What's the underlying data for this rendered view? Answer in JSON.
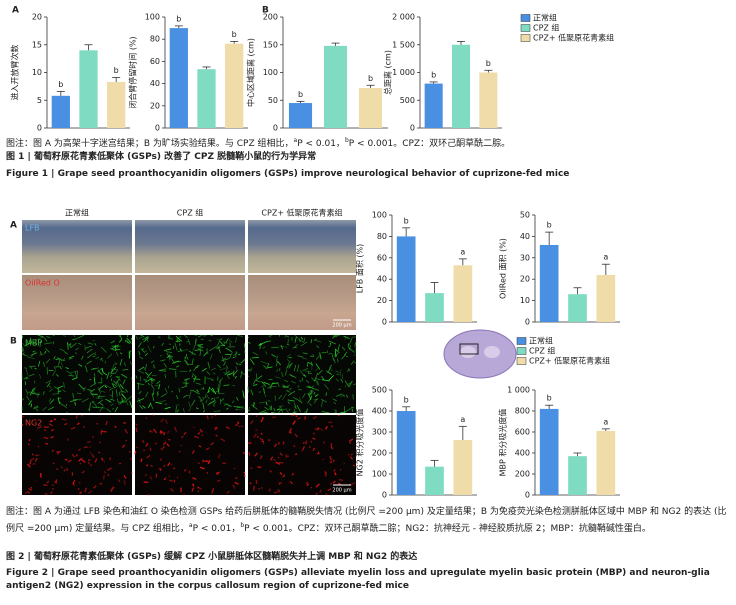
{
  "figure1": {
    "panels": [
      "A",
      "B"
    ],
    "legend": [
      {
        "name": "正常组",
        "color": "#4a90e2"
      },
      {
        "name": "CPZ 组",
        "color": "#7fdcc3"
      },
      {
        "name": "CPZ+ 低聚原花青素组",
        "color": "#f0dca8"
      }
    ],
    "note": [
      "图注：图 A 为高架十字迷宫结果；B 为旷场实验结果。与 CPZ 组相比，",
      {
        "sup": "a"
      },
      "P < 0.01，",
      {
        "sup": "b"
      },
      "P < 0.001。CPZ：双环己酮草酰二腙。"
    ],
    "title_cn": "图 1 | 葡萄籽原花青素低聚体 (GSPs) 改善了 CPZ 脱髓鞘小鼠的行为学异常",
    "title_en": "Figure 1 | Grape seed proanthocyanidin oligomers (GSPs) improve neurological behavior of cuprizone-fed mice"
  },
  "figure2": {
    "panels": [
      "A",
      "B"
    ],
    "columns": [
      "正常组",
      "CPZ 组",
      "CPZ+ 低聚原花青素组"
    ],
    "rows": [
      "LFB",
      "OilRed O",
      "MBP",
      "NG2"
    ],
    "scale_bar": "200 μm",
    "legend": [
      {
        "name": "正常组",
        "color": "#4a90e2"
      },
      {
        "name": "CPZ 组",
        "color": "#7fdcc3"
      },
      {
        "name": "CPZ+ 低聚原花青素组",
        "color": "#f0dca8"
      }
    ],
    "note": [
      "图注：图 A 为通过 LFB 染色和油红 O 染色检测 GSPs 给药后胼胝体的髓鞘脱失情况 (比例尺 =200 μm) 及定量结果；B 为免疫荧光染色检测胼胝体区域中 MBP 和 NG2 的表达 (比例尺 =200 μm) 定量结果。与 CPZ 组相比，",
      {
        "sup": "a"
      },
      "P < 0.01，",
      {
        "sup": "b"
      },
      "P < 0.001。CPZ：双环己酮草酰二腙；NG2：抗神经元 - 神经胶质抗原 2；MBP：抗髓鞘碱性蛋白。"
    ],
    "title_cn": "图 2 | 葡萄籽原花青素低聚体 (GSPs) 缓解 CPZ 小鼠胼胝体区髓鞘脱失并上调 MBP 和 NG2 的表达",
    "title_en": "Figure 2 | Grape seed proanthocyanidin oligomers (GSPs) alleviate myelin loss and upregulate myelin basic protein (MBP) and neuron-glia antigen2 (NG2) expression in the corpus callosum region of cuprizone-fed mice"
  },
  "chart_data": [
    {
      "type": "bar",
      "ylabel": "进入开放臂次数",
      "values": [
        5.8,
        14,
        8.3
      ],
      "errors": [
        0.8,
        1,
        0.8
      ],
      "letters": [
        "b",
        null,
        "b"
      ],
      "ylim": [
        0,
        20
      ],
      "yticks": [
        0,
        5,
        10,
        15,
        20
      ]
    },
    {
      "type": "bar",
      "ylabel": "闭合臂停留时间 (%)",
      "values": [
        90,
        53,
        76
      ],
      "errors": [
        2,
        2,
        2
      ],
      "letters": [
        "b",
        null,
        "b"
      ],
      "ylim": [
        0,
        100
      ],
      "yticks": [
        0,
        20,
        40,
        60,
        80,
        100
      ]
    },
    {
      "type": "bar",
      "ylabel": "中心区域距离 (cm)",
      "values": [
        45,
        148,
        72
      ],
      "errors": [
        3,
        5,
        5
      ],
      "letters": [
        "b",
        null,
        "b"
      ],
      "ylim": [
        0,
        200
      ],
      "yticks": [
        0,
        50,
        100,
        150,
        200
      ]
    },
    {
      "type": "bar",
      "ylabel": "总距离 (cm)",
      "values": [
        800,
        1500,
        1000
      ],
      "errors": [
        30,
        60,
        40
      ],
      "letters": [
        "b",
        null,
        "b"
      ],
      "ylim": [
        0,
        2000
      ],
      "yticks": [
        0,
        500,
        {
          "value": 1000,
          "label": "1 000"
        },
        {
          "value": 1500,
          "label": "1 500"
        },
        {
          "value": 2000,
          "label": "2 000"
        }
      ]
    },
    {
      "type": "bar",
      "ylabel": "LFB 面积 (%)",
      "values": [
        80,
        27,
        53
      ],
      "errors": [
        8,
        10,
        6
      ],
      "letters": [
        "b",
        null,
        "a"
      ],
      "ylim": [
        0,
        100
      ],
      "yticks": [
        0,
        20,
        40,
        60,
        80,
        100
      ]
    },
    {
      "type": "bar",
      "ylabel": "OilRed 面积 (%)",
      "values": [
        36,
        13,
        22
      ],
      "errors": [
        6,
        3,
        5
      ],
      "letters": [
        "b",
        null,
        "a"
      ],
      "ylim": [
        0,
        50
      ],
      "yticks": [
        0,
        10,
        20,
        30,
        40,
        50
      ]
    },
    {
      "type": "bar",
      "ylabel": "NG2 积分吸光度值",
      "values": [
        400,
        135,
        262
      ],
      "errors": [
        20,
        30,
        65
      ],
      "letters": [
        "b",
        null,
        "a"
      ],
      "ylim": [
        0,
        500
      ],
      "yticks": [
        0,
        100,
        200,
        300,
        400,
        500
      ]
    },
    {
      "type": "bar",
      "ylabel": "MBP 积分吸光度值",
      "values": [
        820,
        370,
        610
      ],
      "errors": [
        35,
        30,
        20
      ],
      "letters": [
        "b",
        null,
        "a"
      ],
      "ylim": [
        0,
        1000
      ],
      "yticks": [
        0,
        200,
        400,
        600,
        800,
        {
          "value": 1000,
          "label": "1 000"
        }
      ]
    }
  ]
}
